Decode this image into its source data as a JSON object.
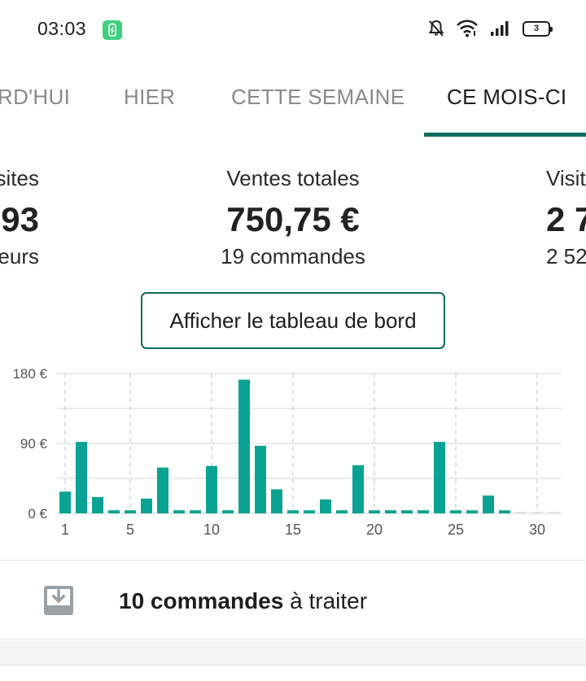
{
  "status_bar": {
    "time": "03:03",
    "battery_level": "3",
    "icons": [
      "battery-charging-icon",
      "bell-off-icon",
      "wifi-icon",
      "signal-icon",
      "battery-icon"
    ]
  },
  "tabs": [
    {
      "label": "RD'HUI",
      "active": false
    },
    {
      "label": "HIER",
      "active": false
    },
    {
      "label": "CETTE SEMAINE",
      "active": false
    },
    {
      "label": "CE MOIS-CI",
      "active": true
    }
  ],
  "stats": [
    {
      "label": "sites",
      "value": "93",
      "sub": "eurs"
    },
    {
      "label": "Ventes totales",
      "value": "750,75 €",
      "sub": "19 commandes"
    },
    {
      "label": "Visit",
      "value": "2 7",
      "sub": "2 52"
    }
  ],
  "dashboard_button": "Afficher le tableau de bord",
  "chart_data": {
    "type": "bar",
    "x": [
      1,
      2,
      3,
      4,
      5,
      6,
      7,
      8,
      9,
      10,
      11,
      12,
      13,
      14,
      15,
      16,
      17,
      18,
      19,
      20,
      21,
      22,
      23,
      24,
      25,
      26,
      27,
      28,
      29,
      30,
      31
    ],
    "values": [
      28,
      92,
      21,
      4,
      4,
      19,
      59,
      4,
      4,
      61,
      4,
      172,
      87,
      31,
      4,
      4,
      18,
      4,
      62,
      4,
      4,
      4,
      4,
      92,
      4,
      4,
      23,
      4,
      2,
      2,
      2
    ],
    "x_ticks": [
      "1",
      "5",
      "10",
      "15",
      "20",
      "25",
      "30"
    ],
    "y_ticks": [
      "0 €",
      "90 €",
      "180 €"
    ],
    "ylim": [
      0,
      180
    ],
    "bar_color": "#0aa393",
    "future_bar_color": "#e2e2e2",
    "grid": true
  },
  "orders": {
    "count_label": "10 commandes",
    "suffix": " à traiter",
    "icon": "inbox-download-icon"
  }
}
